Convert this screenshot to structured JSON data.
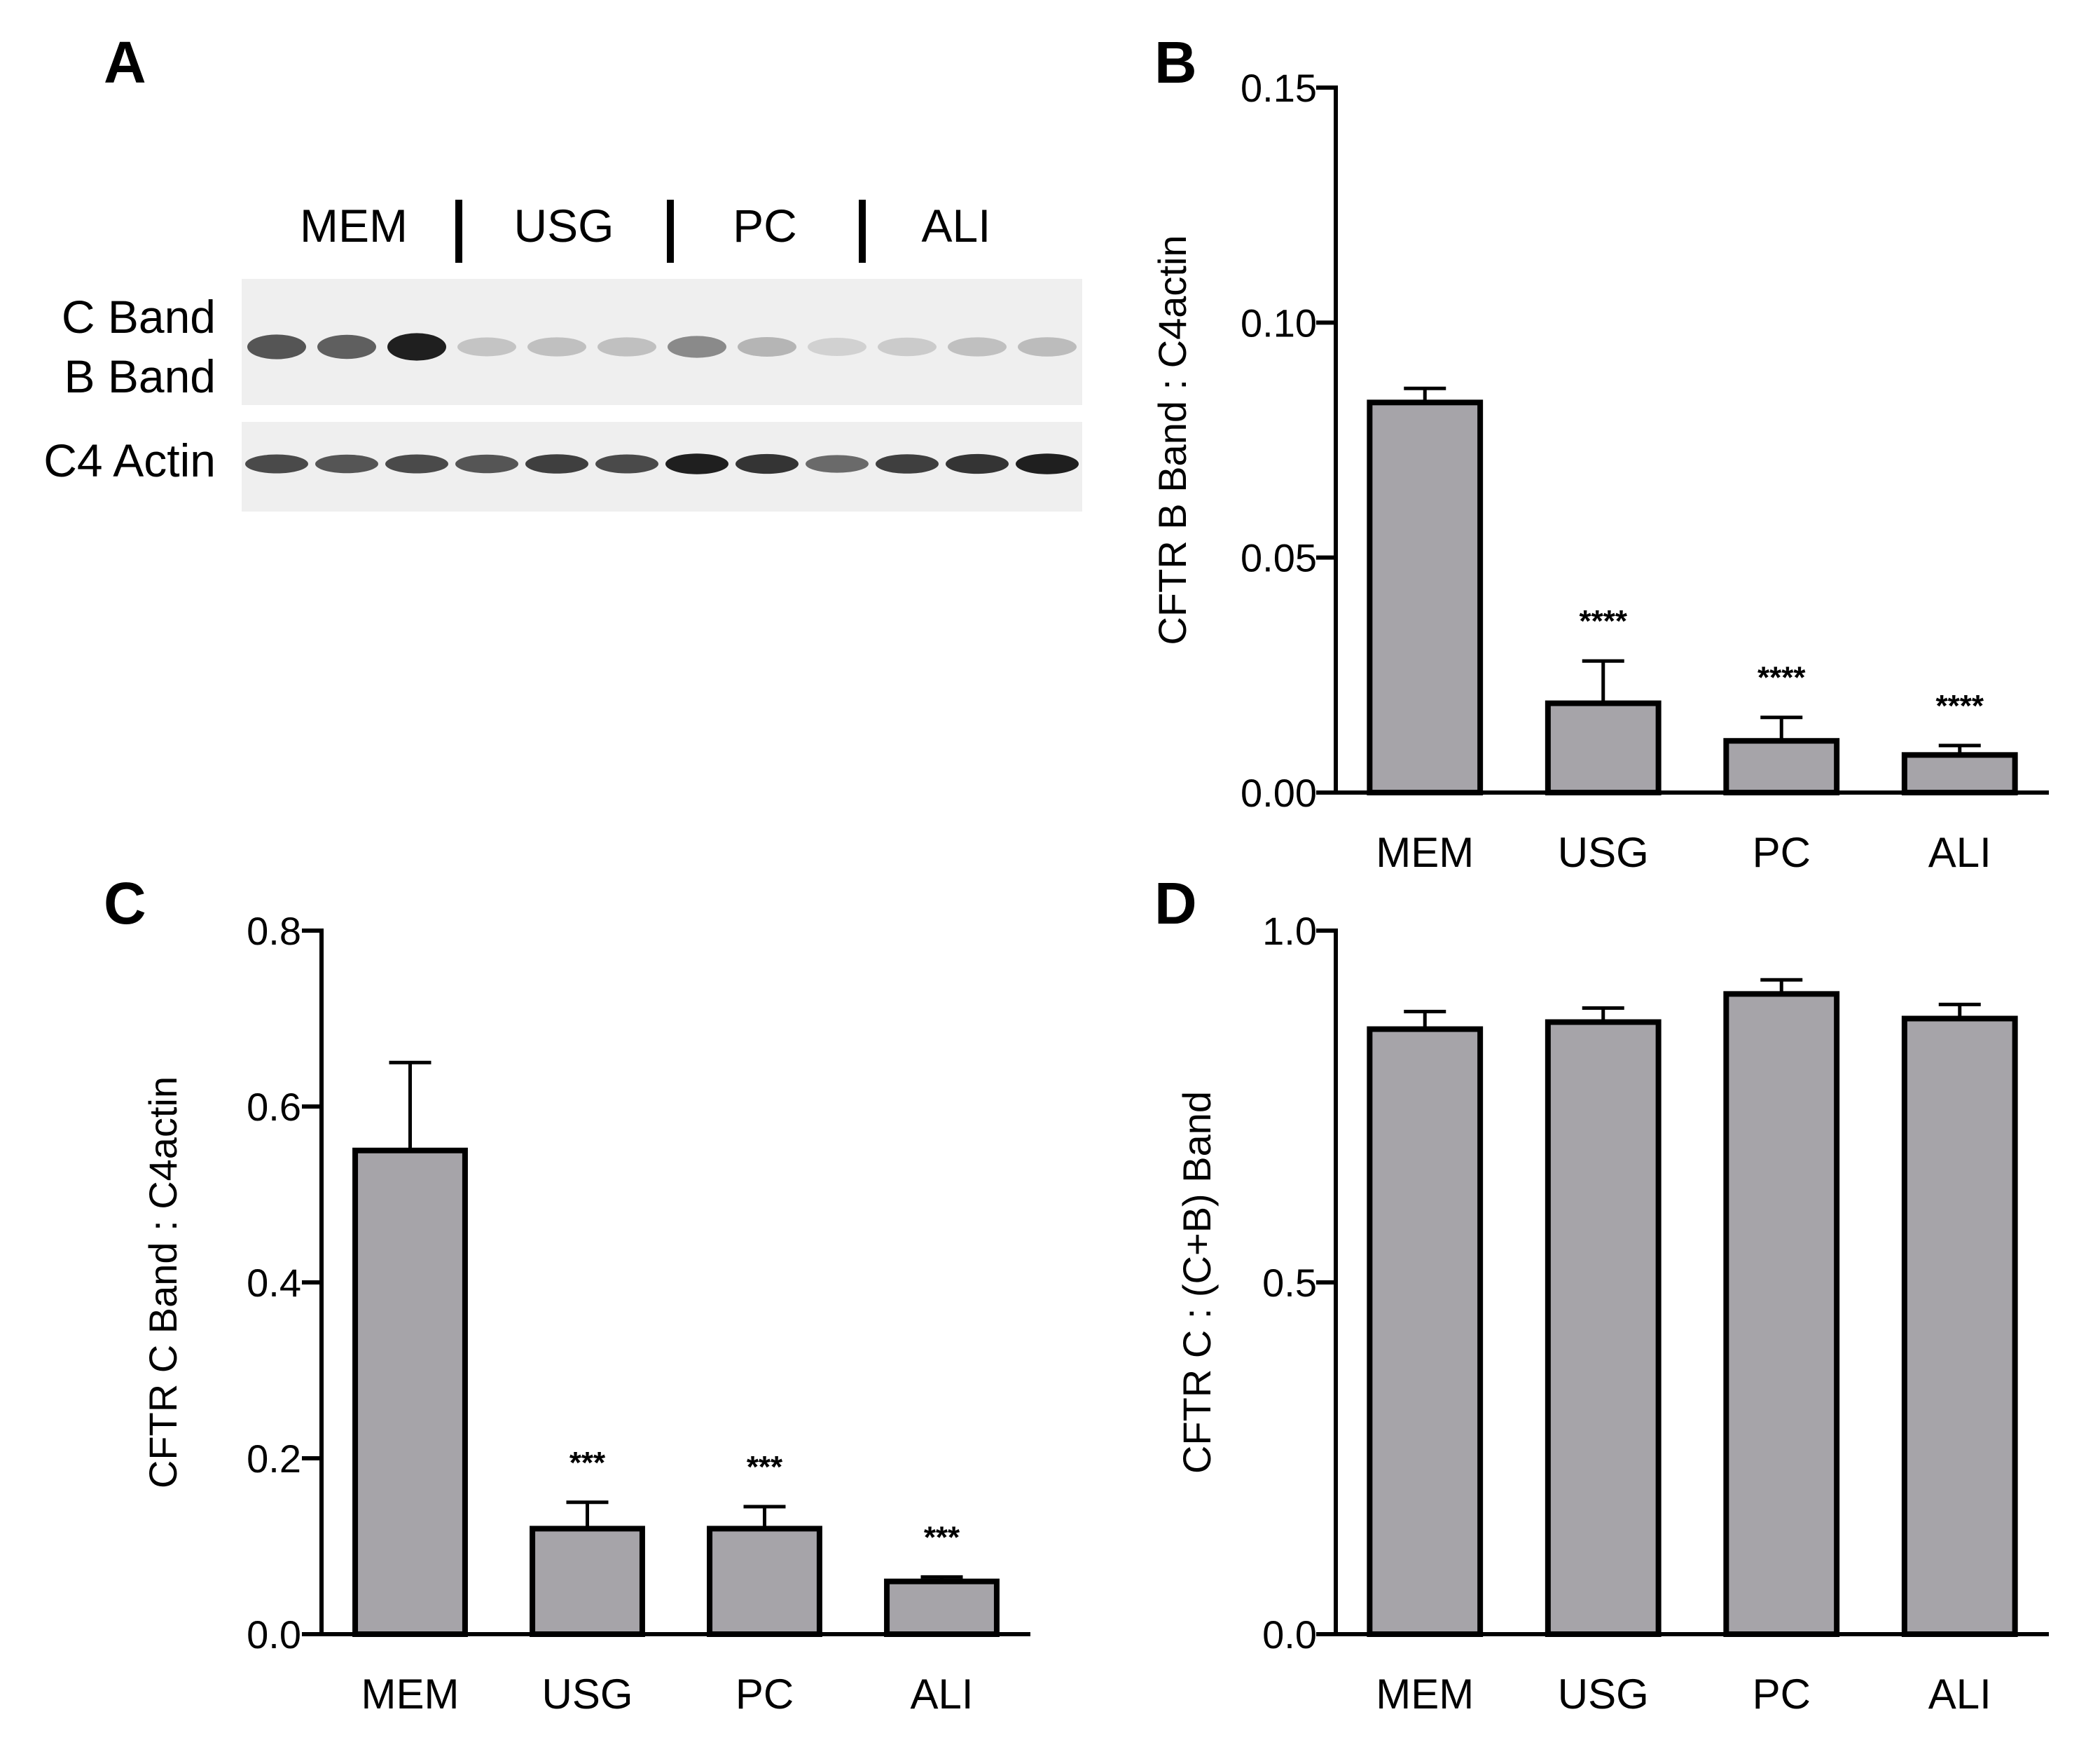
{
  "panels": {
    "A": {
      "letter": "A"
    },
    "B": {
      "letter": "B"
    },
    "C": {
      "letter": "C"
    },
    "D": {
      "letter": "D"
    }
  },
  "blot": {
    "lane_groups": [
      "MEM",
      "USG",
      "PC",
      "ALI"
    ],
    "rows": [
      "C Band",
      "B Band",
      "C4 Actin"
    ],
    "lanes_per_group": 3,
    "band_intensity_top": [
      0.7,
      0.65,
      0.95,
      0.18,
      0.2,
      0.2,
      0.45,
      0.25,
      0.12,
      0.15,
      0.2,
      0.22
    ],
    "band_intensity_actin": [
      0.75,
      0.7,
      0.75,
      0.7,
      0.8,
      0.75,
      0.95,
      0.85,
      0.6,
      0.8,
      0.85,
      0.95
    ]
  },
  "chart_data": [
    {
      "panel": "B",
      "type": "bar",
      "categories": [
        "MEM",
        "USG",
        "PC",
        "ALI"
      ],
      "values": [
        0.083,
        0.019,
        0.011,
        0.008
      ],
      "errors": [
        0.003,
        0.009,
        0.005,
        0.002
      ],
      "significance": [
        "",
        "****",
        "****",
        "****"
      ],
      "ylabel": "CFTR B Band : C4actin",
      "ylim": [
        0,
        0.15
      ],
      "yticks": [
        "0.00",
        "0.05",
        "0.10",
        "0.15"
      ],
      "ytick_values": [
        0,
        0.05,
        0.1,
        0.15
      ]
    },
    {
      "panel": "C",
      "type": "bar",
      "categories": [
        "MEM",
        "USG",
        "PC",
        "ALI"
      ],
      "values": [
        0.55,
        0.12,
        0.12,
        0.06
      ],
      "errors": [
        0.1,
        0.03,
        0.025,
        0.005
      ],
      "significance": [
        "",
        "***",
        "***",
        "***"
      ],
      "ylabel": "CFTR C Band : C4actin",
      "ylim": [
        0,
        0.8
      ],
      "yticks": [
        "0.0",
        "0.2",
        "0.4",
        "0.6",
        "0.8"
      ],
      "ytick_values": [
        0,
        0.2,
        0.4,
        0.6,
        0.8
      ]
    },
    {
      "panel": "D",
      "type": "bar",
      "categories": [
        "MEM",
        "USG",
        "PC",
        "ALI"
      ],
      "values": [
        0.86,
        0.87,
        0.91,
        0.875
      ],
      "errors": [
        0.025,
        0.02,
        0.02,
        0.02
      ],
      "significance": [
        "",
        "",
        "",
        ""
      ],
      "ylabel": "CFTR C : (C+B) Band",
      "ylim": [
        0,
        1.0
      ],
      "yticks": [
        "0.0",
        "0.5",
        "1.0"
      ],
      "ytick_values": [
        0,
        0.5,
        1.0
      ]
    }
  ],
  "colors": {
    "bar_fill": "#a6a4a9",
    "axis": "#000000",
    "blot_background": "#efefef"
  }
}
